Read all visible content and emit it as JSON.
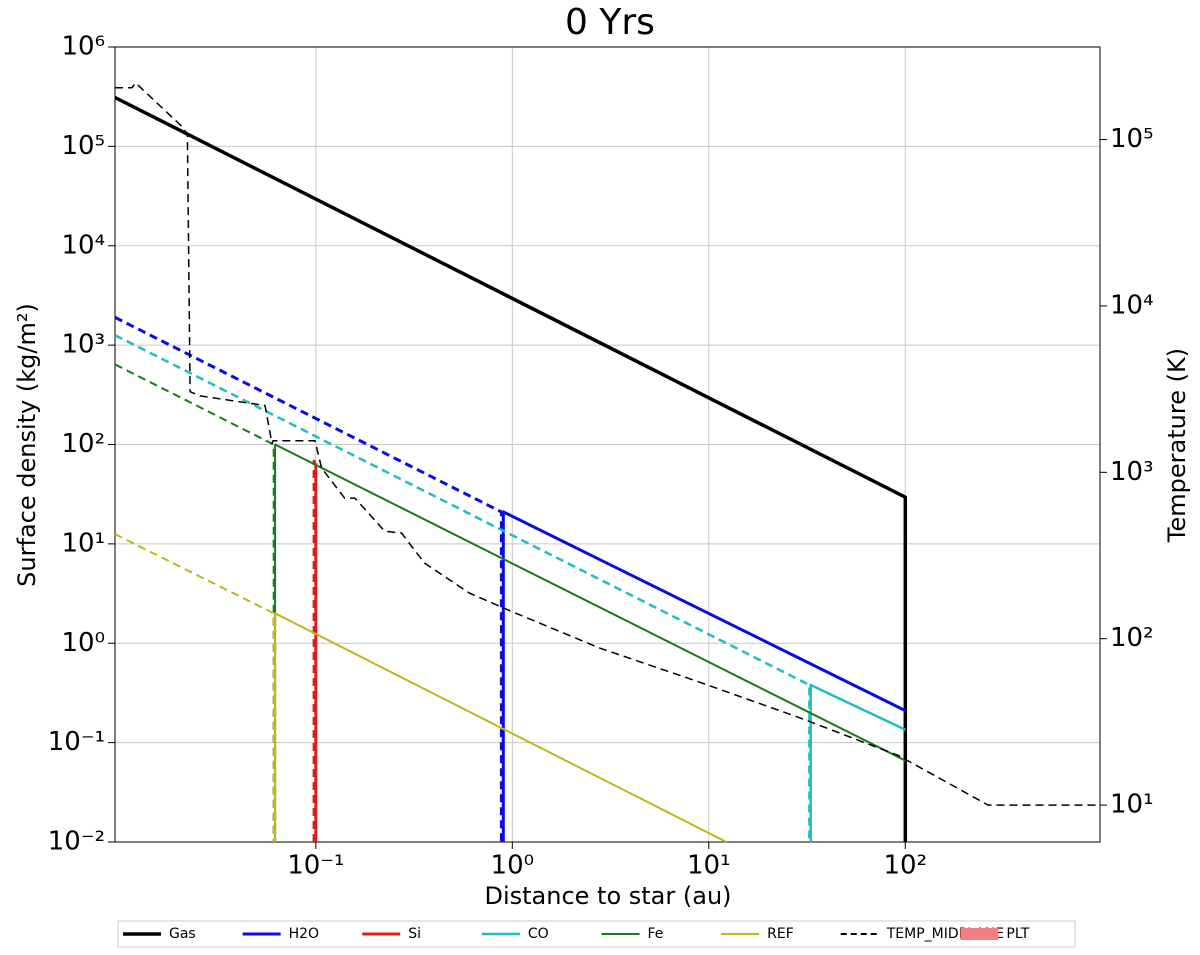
{
  "chart_data": {
    "type": "line",
    "title": "0 Yrs",
    "x_label": "Distance to star (au)",
    "y_label": "Surface density (kg/m²)",
    "y2_label": "Temperature (K)",
    "log_x": true,
    "log_y": true,
    "log_y2": true,
    "grid": true,
    "legend": "bottom",
    "xlim": [
      0.0095,
      980
    ],
    "ylim": [
      0.01,
      1000000
    ],
    "y2lim": [
      6,
      360000
    ],
    "xticks": [
      {
        "value": 0.1,
        "label": "10⁻¹"
      },
      {
        "value": 1,
        "label": "10⁰"
      },
      {
        "value": 10,
        "label": "10¹"
      },
      {
        "value": 100,
        "label": "10²"
      }
    ],
    "yticks": [
      {
        "value": 0.01,
        "label": "10⁻²"
      },
      {
        "value": 0.1,
        "label": "10⁻¹"
      },
      {
        "value": 1,
        "label": "10⁰"
      },
      {
        "value": 10,
        "label": "10¹"
      },
      {
        "value": 100,
        "label": "10²"
      },
      {
        "value": 1000,
        "label": "10³"
      },
      {
        "value": 10000,
        "label": "10⁴"
      },
      {
        "value": 100000,
        "label": "10⁵"
      },
      {
        "value": 1000000,
        "label": "10⁶"
      }
    ],
    "y2ticks": [
      {
        "value": 10,
        "label": "10¹"
      },
      {
        "value": 100,
        "label": "10²"
      },
      {
        "value": 1000,
        "label": "10³"
      },
      {
        "value": 10000,
        "label": "10⁴"
      },
      {
        "value": 100000,
        "label": "10⁵"
      }
    ],
    "series": [
      {
        "name": "Gas",
        "color": "#000000",
        "width": 3.5,
        "x": [
          0.0095,
          100,
          100
        ],
        "values": [
          310000,
          29.5,
          0.01
        ]
      },
      {
        "name": "H2O",
        "color": "#0a0ae6",
        "width": 3,
        "x": [
          0.9,
          0.9,
          100
        ],
        "values": [
          0.01,
          21,
          0.21
        ],
        "x_dashed": [
          0.0095,
          0.88,
          0.88
        ],
        "values_dashed": [
          1900,
          21,
          0.01
        ]
      },
      {
        "name": "Si",
        "color": "#e31a1a",
        "width": 3,
        "x": [
          0.1,
          0.1
        ],
        "values": [
          0.01,
          65
        ],
        "x_dashed": [
          0.098,
          0.098
        ],
        "values_dashed": [
          0.01,
          70
        ]
      },
      {
        "name": "CO",
        "color": "#1fbfbf",
        "width": 2.5,
        "x": [
          33,
          33,
          100
        ],
        "values": [
          0.01,
          0.38,
          0.135
        ],
        "x_dashed": [
          0.0095,
          32.5,
          32.5
        ],
        "values_dashed": [
          1260,
          0.38,
          0.01
        ]
      },
      {
        "name": "Fe",
        "color": "#1a7a1a",
        "width": 2,
        "x": [
          0.062,
          0.062,
          100
        ],
        "values": [
          0.01,
          100,
          0.066
        ],
        "x_dashed": [
          0.0095,
          0.061,
          0.061
        ],
        "values_dashed": [
          640,
          100,
          0.01
        ]
      },
      {
        "name": "REF",
        "color": "#c2b51c",
        "width": 2,
        "x": [
          0.062,
          0.062,
          12.3
        ],
        "values": [
          0.01,
          2,
          0.01
        ],
        "x_dashed": [
          0.0095,
          0.061,
          0.061
        ],
        "values_dashed": [
          12.5,
          2,
          0.01
        ]
      },
      {
        "name": "TEMP_MIDPLANE",
        "color": "#000000",
        "width": 1.5,
        "axis": "y2",
        "x_dashed": [
          0.0095,
          0.0116,
          0.0121,
          0.0211,
          0.0222,
          0.0229,
          0.0257,
          0.0551,
          0.0598,
          0.0605,
          0.099,
          0.107,
          0.14,
          0.158,
          0.224,
          0.273,
          0.357,
          0.605,
          0.977,
          2.77,
          8.9,
          28.6,
          92,
          264,
          980
        ],
        "values_dashed": [
          205000,
          205000,
          219000,
          118000,
          107000,
          3050,
          2880,
          2520,
          1490,
          1550,
          1550,
          1060,
          700,
          700,
          443,
          432,
          285,
          188,
          147,
          88,
          55,
          33.7,
          19.9,
          10,
          10
        ]
      },
      {
        "name": "PLT",
        "color": "#f08080",
        "patch": true
      }
    ]
  }
}
